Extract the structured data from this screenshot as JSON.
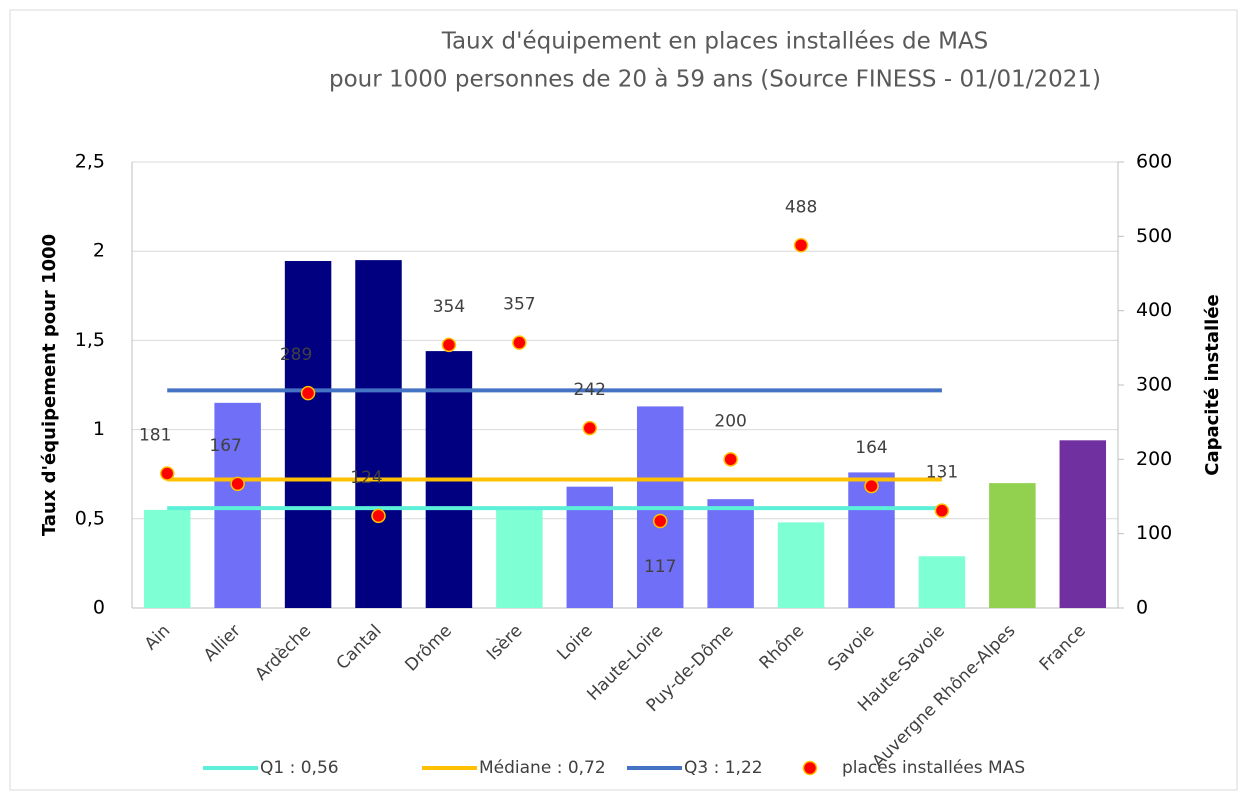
{
  "chart_data": {
    "type": "bar",
    "title": [
      "Taux d'équipement en places installées de MAS",
      "pour 1000 personnes de 20 à 59 ans  (Source FINESS  - 01/01/2021)"
    ],
    "ylabel": "Taux d'équipement pour 1000",
    "y2label": "Capacité installée",
    "categories": [
      "Ain",
      "Allier",
      "Ardèche",
      "Cantal",
      "Drôme",
      "Isère",
      "Loire",
      "Haute-Loire",
      "Puy-de-Dôme",
      "Rhône",
      "Savoie",
      "Haute-Savoie",
      "Auvergne Rhône-Alpes",
      "France"
    ],
    "ylim": [
      0,
      2.5
    ],
    "yticks": [
      0,
      {
        "value": 0.5,
        "label": "0,5"
      },
      1,
      {
        "value": 1.5,
        "label": "1,5"
      },
      2,
      {
        "value": 2.5,
        "label": "2,5"
      }
    ],
    "y2lim": [
      0,
      600
    ],
    "y2ticks": [
      0,
      100,
      200,
      300,
      400,
      500,
      600
    ],
    "grid": true,
    "legend": "bottom",
    "series": [
      {
        "type": "bar",
        "colors": [
          "#7fffd4",
          "#6f6ff7",
          "#000080",
          "#000080",
          "#000080",
          "#7fffd4",
          "#6f6ff7",
          "#6f6ff7",
          "#6f6ff7",
          "#7fffd4",
          "#6f6ff7",
          "#7fffd4",
          "#92d050",
          "#7030a0"
        ],
        "values": [
          0.55,
          1.15,
          1.945,
          1.95,
          1.44,
          0.55,
          0.68,
          1.13,
          0.61,
          0.48,
          0.76,
          0.29,
          0.7,
          0.94
        ]
      },
      {
        "type": "line",
        "name": "Q1 : 0,56",
        "color": "#5cf0d8",
        "values": [
          0.56,
          0.56,
          0.56,
          0.56,
          0.56,
          0.56,
          0.56,
          0.56,
          0.56,
          0.56,
          0.56,
          0.56,
          null,
          null
        ]
      },
      {
        "type": "line",
        "name": "Médiane : 0,72",
        "color": "#ffc000",
        "values": [
          0.72,
          0.72,
          0.72,
          0.72,
          0.72,
          0.72,
          0.72,
          0.72,
          0.72,
          0.72,
          0.72,
          0.72,
          null,
          null
        ]
      },
      {
        "type": "line",
        "name": "Q3 : 1,22",
        "color": "#4472c4",
        "values": [
          1.22,
          1.22,
          1.22,
          1.22,
          1.22,
          1.22,
          1.22,
          1.22,
          1.22,
          1.22,
          1.22,
          1.22,
          null,
          null
        ]
      },
      {
        "type": "scatter",
        "axis": "y2",
        "name": "places installées MAS",
        "color": "#ff0000",
        "values": [
          181,
          167,
          289,
          124,
          354,
          357,
          242,
          117,
          200,
          488,
          164,
          131,
          null,
          null
        ]
      }
    ]
  }
}
